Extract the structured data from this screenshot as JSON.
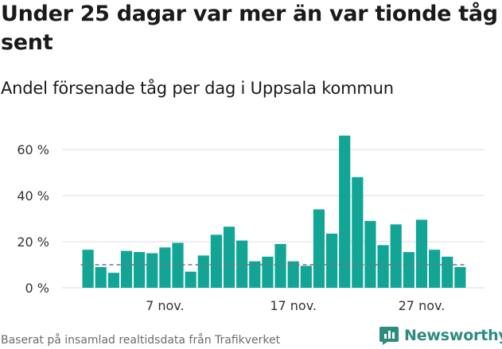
{
  "title": "Under 25 dagar var mer än var tionde tåg sent",
  "subtitle": "Andel försenade tåg per dag i Uppsala kommun",
  "source": "Baserat på insamlad realtidsdata från Trafikverket",
  "logo_text": "Newsworthy",
  "colors": {
    "bar": "#12a596",
    "grid": "#dddddd",
    "reference": "#777777",
    "logo": "#2e8b80"
  },
  "chart_data": {
    "type": "bar",
    "ylabel": "",
    "xlabel": "",
    "ylim": [
      0,
      60
    ],
    "yticks": [
      0,
      20,
      40,
      60
    ],
    "ytick_labels": [
      "0 %",
      "20 %",
      "40 %",
      "60 %"
    ],
    "xtick_labels": [
      {
        "day": 7,
        "label": "7 nov."
      },
      {
        "day": 17,
        "label": "17 nov."
      },
      {
        "day": 27,
        "label": "27 nov."
      }
    ],
    "reference_line": 10,
    "grid": true,
    "days": [
      1,
      2,
      3,
      4,
      5,
      6,
      7,
      8,
      9,
      10,
      11,
      12,
      13,
      14,
      15,
      16,
      17,
      18,
      19,
      20,
      21,
      22,
      23,
      24,
      25,
      26,
      27,
      28,
      29,
      30
    ],
    "values": [
      16.5,
      9,
      6.5,
      16,
      15.5,
      15,
      17.5,
      19.5,
      7,
      14,
      23,
      26.5,
      20.5,
      11.5,
      13.5,
      19,
      11.5,
      9.5,
      34,
      23.5,
      66,
      48,
      29,
      18.5,
      27.5,
      15.5,
      29.5,
      16.5,
      13.5,
      9
    ]
  }
}
